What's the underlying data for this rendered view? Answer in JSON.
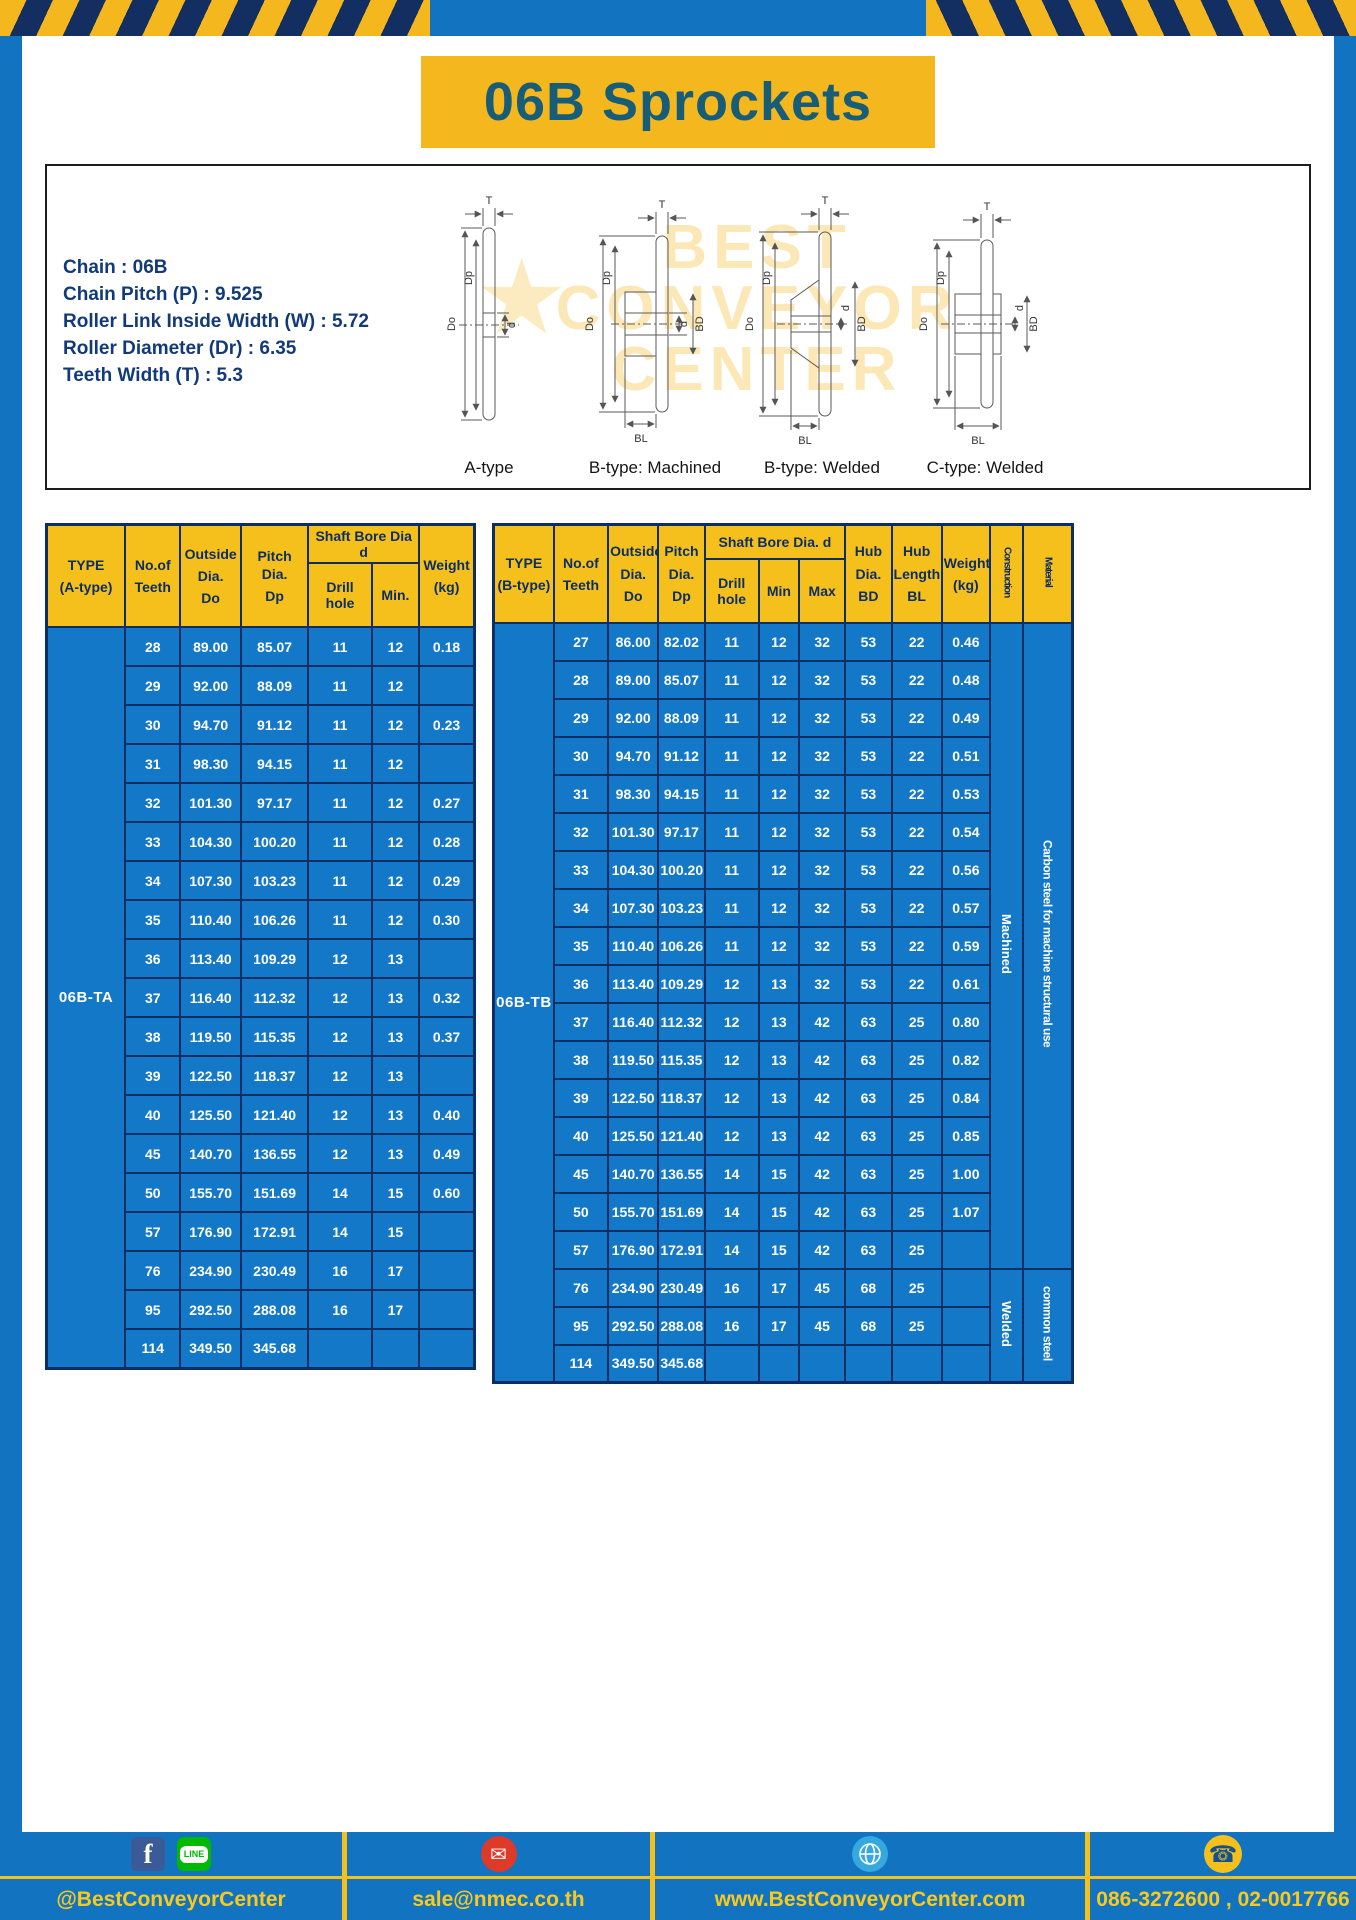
{
  "page": {
    "title": "06B Sprockets"
  },
  "specs": [
    "Chain  : 06B",
    "Chain Pitch (P)  :  9.525",
    "Roller Link Inside Width (W)  :  5.72",
    "Roller Diameter (Dr)  :  6.35",
    "Teeth Width (T)  :  5.3"
  ],
  "watermark": [
    "BEST",
    "CONVEYOR",
    "CENTER"
  ],
  "diagram_labels": [
    "A-type",
    "B-type: Machined",
    "B-type: Welded",
    "C-type: Welded"
  ],
  "dims": {
    "t": "T",
    "do": "Do",
    "dp": "Dp",
    "d": "d",
    "bd": "BD",
    "bl": "BL"
  },
  "table_a": {
    "header": {
      "type": "TYPE\n(A-type)",
      "teeth": "No.of\nTeeth",
      "outside": "Outside\nDia.\nDo",
      "pitch": "Pitch Dia.\nDp",
      "bore_group": "Shaft Bore Dia d",
      "drill": "Drill hole",
      "min": "Min.",
      "weight": "Weight\n(kg)"
    },
    "type_value": "06B-TA",
    "rows": [
      [
        "28",
        "89.00",
        "85.07",
        "11",
        "12",
        "0.18"
      ],
      [
        "29",
        "92.00",
        "88.09",
        "11",
        "12",
        ""
      ],
      [
        "30",
        "94.70",
        "91.12",
        "11",
        "12",
        "0.23"
      ],
      [
        "31",
        "98.30",
        "94.15",
        "11",
        "12",
        ""
      ],
      [
        "32",
        "101.30",
        "97.17",
        "11",
        "12",
        "0.27"
      ],
      [
        "33",
        "104.30",
        "100.20",
        "11",
        "12",
        "0.28"
      ],
      [
        "34",
        "107.30",
        "103.23",
        "11",
        "12",
        "0.29"
      ],
      [
        "35",
        "110.40",
        "106.26",
        "11",
        "12",
        "0.30"
      ],
      [
        "36",
        "113.40",
        "109.29",
        "12",
        "13",
        ""
      ],
      [
        "37",
        "116.40",
        "112.32",
        "12",
        "13",
        "0.32"
      ],
      [
        "38",
        "119.50",
        "115.35",
        "12",
        "13",
        "0.37"
      ],
      [
        "39",
        "122.50",
        "118.37",
        "12",
        "13",
        ""
      ],
      [
        "40",
        "125.50",
        "121.40",
        "12",
        "13",
        "0.40"
      ],
      [
        "45",
        "140.70",
        "136.55",
        "12",
        "13",
        "0.49"
      ],
      [
        "50",
        "155.70",
        "151.69",
        "14",
        "15",
        "0.60"
      ],
      [
        "57",
        "176.90",
        "172.91",
        "14",
        "15",
        ""
      ],
      [
        "76",
        "234.90",
        "230.49",
        "16",
        "17",
        ""
      ],
      [
        "95",
        "292.50",
        "288.08",
        "16",
        "17",
        ""
      ],
      [
        "114",
        "349.50",
        "345.68",
        "",
        "",
        ""
      ]
    ]
  },
  "table_b": {
    "header": {
      "type": "TYPE\n(B-type)",
      "teeth": "No.of\nTeeth",
      "outside": "Outside\nDia.\nDo",
      "pitch": "Pitch\nDia.\nDp",
      "bore_group": "Shaft Bore Dia. d",
      "drill": "Drill hole",
      "min": "Min",
      "max": "Max",
      "hub_dia": "Hub\nDia.\nBD",
      "hub_len": "Hub\nLength\nBL",
      "weight": "Weight\n(kg)",
      "construction": "Construction",
      "material": "Material"
    },
    "type_value": "06B-TB",
    "rows": [
      [
        "27",
        "86.00",
        "82.02",
        "11",
        "12",
        "32",
        "53",
        "22",
        "0.46"
      ],
      [
        "28",
        "89.00",
        "85.07",
        "11",
        "12",
        "32",
        "53",
        "22",
        "0.48"
      ],
      [
        "29",
        "92.00",
        "88.09",
        "11",
        "12",
        "32",
        "53",
        "22",
        "0.49"
      ],
      [
        "30",
        "94.70",
        "91.12",
        "11",
        "12",
        "32",
        "53",
        "22",
        "0.51"
      ],
      [
        "31",
        "98.30",
        "94.15",
        "11",
        "12",
        "32",
        "53",
        "22",
        "0.53"
      ],
      [
        "32",
        "101.30",
        "97.17",
        "11",
        "12",
        "32",
        "53",
        "22",
        "0.54"
      ],
      [
        "33",
        "104.30",
        "100.20",
        "11",
        "12",
        "32",
        "53",
        "22",
        "0.56"
      ],
      [
        "34",
        "107.30",
        "103.23",
        "11",
        "12",
        "32",
        "53",
        "22",
        "0.57"
      ],
      [
        "35",
        "110.40",
        "106.26",
        "11",
        "12",
        "32",
        "53",
        "22",
        "0.59"
      ],
      [
        "36",
        "113.40",
        "109.29",
        "12",
        "13",
        "32",
        "53",
        "22",
        "0.61"
      ],
      [
        "37",
        "116.40",
        "112.32",
        "12",
        "13",
        "42",
        "63",
        "25",
        "0.80"
      ],
      [
        "38",
        "119.50",
        "115.35",
        "12",
        "13",
        "42",
        "63",
        "25",
        "0.82"
      ],
      [
        "39",
        "122.50",
        "118.37",
        "12",
        "13",
        "42",
        "63",
        "25",
        "0.84"
      ],
      [
        "40",
        "125.50",
        "121.40",
        "12",
        "13",
        "42",
        "63",
        "25",
        "0.85"
      ],
      [
        "45",
        "140.70",
        "136.55",
        "14",
        "15",
        "42",
        "63",
        "25",
        "1.00"
      ],
      [
        "50",
        "155.70",
        "151.69",
        "14",
        "15",
        "42",
        "63",
        "25",
        "1.07"
      ],
      [
        "57",
        "176.90",
        "172.91",
        "14",
        "15",
        "42",
        "63",
        "25",
        ""
      ],
      [
        "76",
        "234.90",
        "230.49",
        "16",
        "17",
        "45",
        "68",
        "25",
        ""
      ],
      [
        "95",
        "292.50",
        "288.08",
        "16",
        "17",
        "45",
        "68",
        "25",
        ""
      ],
      [
        "114",
        "349.50",
        "345.68",
        "",
        "",
        "",
        "",
        "",
        ""
      ]
    ],
    "construction": [
      {
        "label": "Machined",
        "span": 17
      },
      {
        "label": "Welded",
        "span": 3
      }
    ],
    "material": [
      {
        "label": "Carbon steel for machine structural use",
        "span": 17
      },
      {
        "label": "common steel",
        "span": 3
      }
    ]
  },
  "footer": {
    "facebook_label": "@BestConveyorCenter",
    "line_icon_text": "LINE",
    "email_label": "sale@nmec.co.th",
    "website_label": "www.BestConveyorCenter.com",
    "phone_label": "086-3272600 , 02-0017766"
  }
}
